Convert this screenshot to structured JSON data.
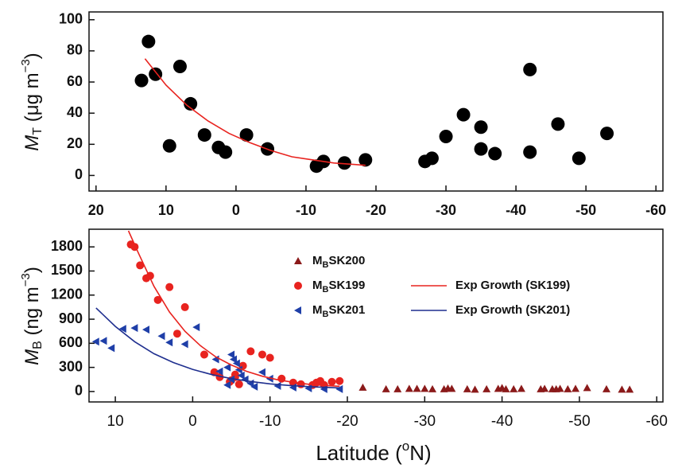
{
  "chart_data": [
    {
      "type": "scatter",
      "ylabel": {
        "main": "M",
        "sub": "T",
        "unit": " (μg m",
        "sup": "−3",
        "close": ")"
      },
      "xlim": [
        21,
        -61
      ],
      "ylim": [
        -10,
        105
      ],
      "xticks": [
        20,
        10,
        0,
        -10,
        -20,
        -30,
        -40,
        -50,
        -60
      ],
      "yticks": [
        0,
        20,
        40,
        60,
        80,
        100
      ],
      "series": [
        {
          "mode": "markers",
          "marker": "circle",
          "color": "#000000",
          "x": [
            13.5,
            12.5,
            11.5,
            9.5,
            8,
            6.5,
            4.5,
            2.5,
            1.5,
            -1.5,
            -4.5,
            -11.5,
            -12.5,
            -15.5,
            -18.5,
            -27,
            -28,
            -30,
            -32.5,
            -35,
            -35,
            -37,
            -42,
            -42,
            -46,
            -49,
            -53
          ],
          "values": [
            61,
            86,
            65,
            19,
            70,
            46,
            26,
            18,
            15,
            26,
            17,
            6,
            9,
            8,
            10,
            9,
            11,
            25,
            39,
            31,
            17,
            14,
            15,
            68,
            33,
            11,
            27
          ]
        },
        {
          "mode": "line",
          "color": "#e8231f",
          "x": [
            13,
            10,
            7,
            4,
            1,
            -2,
            -5,
            -8,
            -11,
            -14,
            -17,
            -18.5
          ],
          "values": [
            75,
            58,
            45,
            35,
            27,
            21,
            16,
            12,
            10,
            8,
            7,
            6.5
          ]
        }
      ]
    },
    {
      "type": "scatter",
      "ylabel": {
        "main": "M",
        "sub": "B",
        "unit": " (ng m",
        "sup": "−3",
        "close": ")"
      },
      "xlabel": {
        "main": "Latitude (",
        "sup": "o",
        "close": "N)"
      },
      "xlim": [
        13.4,
        -60.8
      ],
      "ylim": [
        -130,
        2020
      ],
      "xticks": [
        10,
        0,
        -10,
        -20,
        -30,
        -40,
        -50,
        -60
      ],
      "yticks": [
        0,
        300,
        600,
        900,
        1200,
        1500,
        1800
      ],
      "series": [
        {
          "name_prefix": "M",
          "name_sub": "B",
          "name": "SK200",
          "mode": "markers",
          "marker": "triangle",
          "color": "#8b1a1a",
          "x": [
            -22,
            -25,
            -26.5,
            -28,
            -29,
            -30,
            -31,
            -32.5,
            -33,
            -33.5,
            -35.5,
            -36.5,
            -38,
            -39.5,
            -40,
            -40.5,
            -41.5,
            -42.5,
            -45,
            -45.5,
            -46.5,
            -47,
            -47.5,
            -48.5,
            -49.5,
            -51,
            -53.5,
            -55.5,
            -56.5
          ],
          "values": [
            50,
            30,
            30,
            35,
            35,
            35,
            30,
            30,
            40,
            35,
            30,
            25,
            30,
            35,
            45,
            30,
            30,
            35,
            30,
            35,
            30,
            30,
            35,
            30,
            35,
            45,
            30,
            25,
            25
          ]
        },
        {
          "name_prefix": "M",
          "name_sub": "B",
          "name": "SK199",
          "mode": "markers",
          "marker": "circle",
          "color": "#e8231f",
          "x": [
            8,
            7.5,
            6.8,
            6,
            5.5,
            4.5,
            3,
            1,
            2,
            -1.5,
            -2.8,
            -3.5,
            -5,
            -5.5,
            -6.5,
            -7.5,
            -9,
            -10,
            -11.5,
            -13,
            -14,
            -15.5,
            -16,
            -16.5,
            -17,
            -18,
            -19,
            -6,
            -5.5,
            -4.8
          ],
          "values": [
            1830,
            1800,
            1570,
            1410,
            1440,
            1140,
            1300,
            1050,
            720,
            460,
            240,
            180,
            140,
            210,
            320,
            500,
            460,
            420,
            160,
            110,
            90,
            80,
            110,
            130,
            80,
            120,
            130,
            90,
            180,
            120
          ]
        },
        {
          "name_prefix": "M",
          "name_sub": "B",
          "name": "SK201",
          "mode": "markers",
          "marker": "left-triangle",
          "color": "#1f3fa8",
          "x": [
            12.5,
            11.5,
            10.5,
            9,
            7.5,
            6,
            4,
            3,
            1,
            -0.5,
            -3,
            -3.5,
            -4.5,
            -5,
            -5.3,
            -5.7,
            -6,
            -6.3,
            -6.8,
            -7.5,
            -8,
            -9,
            -10,
            -4.5,
            -5,
            -11,
            -13,
            -15,
            -17,
            -19
          ],
          "values": [
            620,
            630,
            540,
            780,
            790,
            770,
            690,
            610,
            590,
            800,
            400,
            250,
            300,
            460,
            400,
            350,
            270,
            200,
            150,
            100,
            60,
            240,
            160,
            80,
            150,
            70,
            50,
            40,
            30,
            30
          ]
        },
        {
          "name": "Exp Growth (SK199)",
          "mode": "line",
          "color": "#e8231f",
          "x": [
            8.3,
            7,
            5,
            3,
            1,
            -1,
            -3,
            -5,
            -7,
            -9,
            -11,
            -13,
            -15,
            -17,
            -19
          ],
          "values": [
            2000,
            1720,
            1310,
            990,
            750,
            570,
            430,
            330,
            250,
            190,
            145,
            115,
            90,
            75,
            65
          ]
        },
        {
          "name": "Exp Growth (SK201)",
          "mode": "line",
          "color": "#1f2f8f",
          "x": [
            12.5,
            10,
            7.5,
            5,
            2.5,
            0,
            -2.5,
            -5,
            -7.5,
            -10,
            -12.5,
            -15,
            -17.5,
            -19
          ],
          "values": [
            1040,
            810,
            620,
            470,
            360,
            275,
            210,
            160,
            125,
            95,
            75,
            60,
            50,
            45
          ]
        }
      ]
    }
  ]
}
